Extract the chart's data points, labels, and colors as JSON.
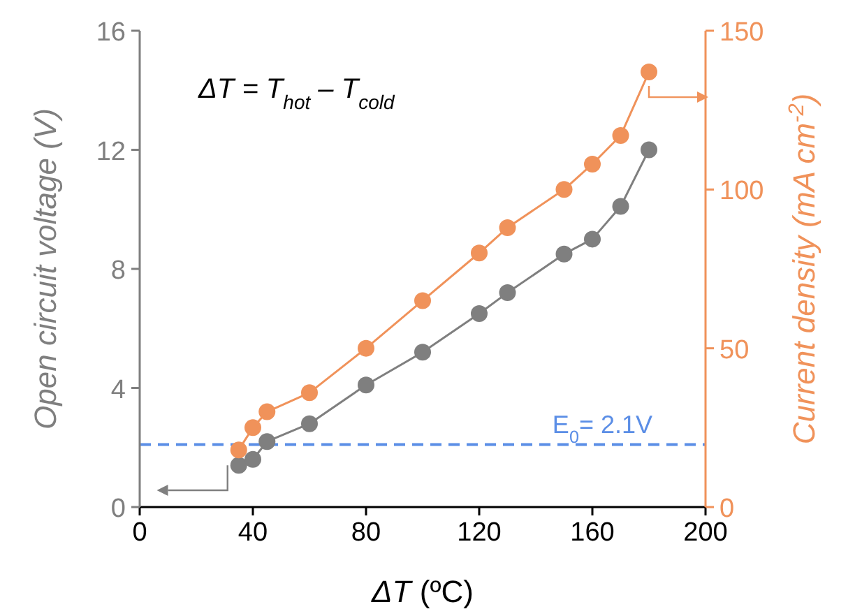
{
  "chart_data": {
    "type": "line",
    "xlabel": "ΔT (ºC)",
    "ylabel": "Open circuit voltage (V)",
    "y2label": "Current density (mA cm$^{-2}$)",
    "xlim": [
      0,
      200
    ],
    "xticks": [
      0,
      40,
      80,
      120,
      160,
      200
    ],
    "ylim": [
      0,
      16
    ],
    "yticks": [
      0,
      4,
      8,
      12,
      16
    ],
    "y2lim": [
      0,
      150
    ],
    "y2ticks": [
      0,
      50,
      100,
      150
    ],
    "x": [
      35,
      40,
      45,
      60,
      80,
      100,
      120,
      130,
      150,
      160,
      170,
      180
    ],
    "series": [
      {
        "color": "#7f7f7f",
        "values": [
          1.4,
          1.6,
          2.2,
          2.8,
          4.1,
          5.2,
          6.5,
          7.2,
          8.5,
          9.0,
          10.1,
          12.0
        ]
      },
      {
        "color": "#f0925a",
        "axis": "y2",
        "values": [
          18,
          25,
          30,
          36,
          50,
          65,
          80,
          88,
          100,
          108,
          117,
          137
        ]
      }
    ],
    "ref_lines": [
      {
        "axis": "y",
        "value": 2.1,
        "label": "E$_{0}$= 2.1V",
        "color": "#5b8ee6",
        "line_style": "dashed"
      }
    ],
    "annotations": [
      "ΔT = T$_{hot}$ – T$_{cold}$"
    ],
    "marker": "circle",
    "line_style": "solid",
    "grid": false
  }
}
